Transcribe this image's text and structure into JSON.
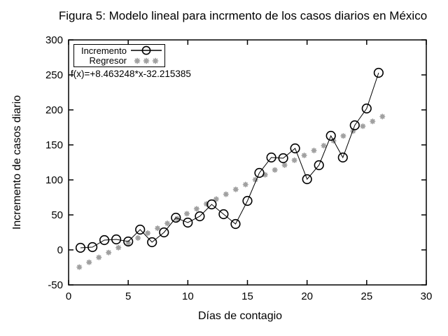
{
  "title": "Figura 5: Modelo lineal para incrmento de los casos diarios en México",
  "chart_data": {
    "type": "line",
    "title": "Figura 5: Modelo lineal para incrmento de los casos diarios en México",
    "xlabel": "Días de contagio",
    "ylabel": "Incremento de casos diario",
    "xlim": [
      0,
      30
    ],
    "ylim": [
      -50,
      300
    ],
    "xticks": [
      0,
      5,
      10,
      15,
      20,
      25,
      30
    ],
    "yticks": [
      -50,
      0,
      50,
      100,
      150,
      200,
      250,
      300
    ],
    "grid": false,
    "annotation": "f(x)=+8.463248*x-32.215385",
    "legend": {
      "position": "top-left",
      "entries": [
        "Incremento",
        "Regresor"
      ]
    },
    "series": [
      {
        "name": "Incremento",
        "style": "linespoints",
        "marker": "open-circle",
        "color": "#000000",
        "x": [
          1,
          2,
          3,
          4,
          5,
          6,
          7,
          8,
          9,
          10,
          11,
          12,
          13,
          14,
          15,
          16,
          17,
          18,
          19,
          20,
          21,
          22,
          23,
          24,
          25,
          26
        ],
        "values": [
          3,
          4,
          14,
          15,
          12,
          29,
          11,
          25,
          46,
          39,
          48,
          65,
          51,
          37,
          70,
          110,
          132,
          131,
          145,
          101,
          121,
          163,
          132,
          178,
          202,
          253
        ]
      },
      {
        "name": "Regresor",
        "style": "points",
        "marker": "asterisk",
        "color": "#a0a0a0",
        "formula": "f(x)=+8.463248*x-32.215385",
        "slope": 8.463248,
        "intercept": -32.215385,
        "x_start": 0.9,
        "x_step": 0.82,
        "n_points": 32
      }
    ]
  }
}
